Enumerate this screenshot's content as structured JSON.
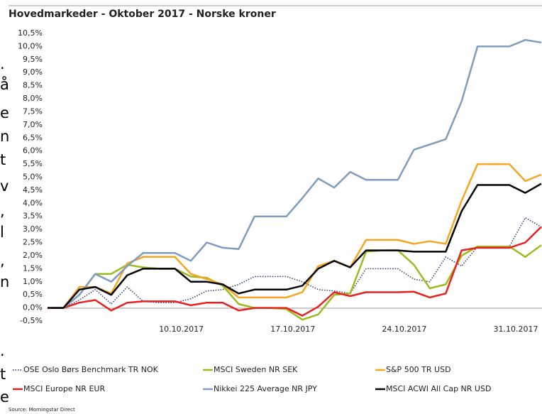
{
  "margin_text": [
    ".",
    "å",
    "e",
    "n",
    "t",
    "v",
    ",",
    "l",
    ",",
    "n",
    ".",
    "t",
    "e"
  ],
  "chart_data": {
    "type": "line",
    "title": "Hovedmarkeder - Oktober 2017 - Norske kroner",
    "source": "Source: Morningstar Direct",
    "categories": [
      null,
      null,
      null,
      null,
      null,
      null,
      null,
      null,
      "10.10.2017",
      null,
      null,
      null,
      null,
      null,
      null,
      "17.10.2017",
      null,
      null,
      null,
      null,
      null,
      null,
      "24.10.2017",
      null,
      null,
      null,
      null,
      null,
      null,
      "31.10.2017",
      null,
      null
    ],
    "ylim": [
      -0.5,
      10.5
    ],
    "yticks": [
      {
        "value": -0.5,
        "label": "-0,5%"
      },
      {
        "value": 0,
        "label": "0,0%"
      },
      {
        "value": 0.5,
        "label": "0,5%"
      },
      {
        "value": 1,
        "label": "1,0%"
      },
      {
        "value": 1.5,
        "label": "1,5%"
      },
      {
        "value": 2,
        "label": "2,0%"
      },
      {
        "value": 2.5,
        "label": "2,5%"
      },
      {
        "value": 3,
        "label": "3,0%"
      },
      {
        "value": 3.5,
        "label": "3,5%"
      },
      {
        "value": 4,
        "label": "4,0%"
      },
      {
        "value": 4.5,
        "label": "4,5%"
      },
      {
        "value": 5,
        "label": "5,0%"
      },
      {
        "value": 5.5,
        "label": "5,5%"
      },
      {
        "value": 6,
        "label": "6,0%"
      },
      {
        "value": 6.5,
        "label": "6,5%"
      },
      {
        "value": 7,
        "label": "7,0%"
      },
      {
        "value": 7.5,
        "label": "7,5%"
      },
      {
        "value": 8,
        "label": "8,0%"
      },
      {
        "value": 8.5,
        "label": "8,5%"
      },
      {
        "value": 9,
        "label": "9,0%"
      },
      {
        "value": 9.5,
        "label": "9,5%"
      },
      {
        "value": 10,
        "label": "10,0%"
      },
      {
        "value": 10.5,
        "label": "10,5%"
      }
    ],
    "grid": false,
    "series": [
      {
        "name": "OSE Oslo Børs Benchmark TR NOK",
        "color": "#2e3a6e",
        "dash": "dotted",
        "values": [
          0,
          0,
          0.3,
          0.7,
          0.15,
          0.8,
          0.25,
          0.2,
          0.2,
          0.35,
          0.65,
          0.7,
          0.9,
          1.2,
          1.2,
          1.2,
          1.0,
          0.7,
          0.65,
          0.55,
          1.5,
          1.5,
          1.5,
          1.1,
          1.0,
          1.95,
          1.6,
          2.35,
          2.35,
          2.35,
          3.45,
          3.1
        ]
      },
      {
        "name": "MSCI Sweden NR SEK",
        "color": "#9bbb1f",
        "values": [
          0,
          0,
          0.5,
          1.3,
          1.3,
          1.65,
          1.55,
          1.5,
          1.5,
          1.2,
          1.15,
          0.85,
          0.15,
          0.0,
          0.0,
          -0.05,
          -0.45,
          -0.25,
          0.5,
          0.55,
          2.15,
          2.2,
          2.2,
          1.65,
          0.75,
          0.9,
          2.0,
          2.35,
          2.35,
          2.35,
          1.95,
          2.4
        ]
      },
      {
        "name": "S&P 500 TR USD",
        "color": "#f5a623",
        "values": [
          0,
          0,
          0.8,
          0.8,
          0.55,
          1.7,
          1.95,
          1.95,
          1.95,
          1.3,
          1.1,
          0.9,
          0.4,
          0.4,
          0.4,
          0.4,
          0.6,
          1.6,
          1.8,
          1.55,
          2.6,
          2.6,
          2.6,
          2.45,
          2.55,
          2.45,
          4.1,
          5.5,
          5.5,
          5.5,
          4.85,
          5.1
        ]
      },
      {
        "name": "MSCI Europe NR EUR",
        "color": "#e82020",
        "values": [
          0,
          0,
          0.2,
          0.3,
          -0.1,
          0.2,
          0.25,
          0.25,
          0.25,
          0.1,
          0.2,
          0.2,
          -0.1,
          0.0,
          0.0,
          0.0,
          -0.3,
          0.05,
          0.6,
          0.45,
          0.6,
          0.6,
          0.6,
          0.62,
          0.4,
          0.55,
          2.2,
          2.3,
          2.3,
          2.3,
          2.5,
          3.1
        ]
      },
      {
        "name": "Nikkei 225 Average NR JPY",
        "color": "#7f9cc0",
        "values": [
          0,
          0,
          0.5,
          1.3,
          1.0,
          1.6,
          2.1,
          2.1,
          2.1,
          1.8,
          2.5,
          2.3,
          2.25,
          3.5,
          3.5,
          3.5,
          4.2,
          4.95,
          4.6,
          5.2,
          4.9,
          4.9,
          4.9,
          6.05,
          6.25,
          6.45,
          7.9,
          10.0,
          10.0,
          10.0,
          10.25,
          10.15
        ]
      },
      {
        "name": "MSCI ACWI All Cap NR USD",
        "color": "#000000",
        "values": [
          0,
          0,
          0.7,
          0.8,
          0.5,
          1.25,
          1.5,
          1.5,
          1.5,
          1.0,
          1.0,
          0.9,
          0.55,
          0.7,
          0.7,
          0.7,
          0.85,
          1.5,
          1.8,
          1.55,
          2.2,
          2.2,
          2.2,
          2.15,
          2.15,
          2.15,
          3.7,
          4.7,
          4.7,
          4.7,
          4.4,
          4.75
        ]
      }
    ]
  }
}
